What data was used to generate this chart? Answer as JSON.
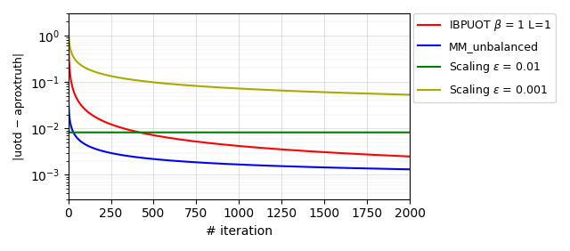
{
  "title": "",
  "xlabel": "# iteration",
  "ylabel": "|uotd − aproxtruth|",
  "xlim": [
    0,
    2000
  ],
  "legend": [
    {
      "label": "IBPUOT $\\beta$ = 1 L=1",
      "color": "red"
    },
    {
      "label": "MM_unbalanced",
      "color": "blue"
    },
    {
      "label": "Scaling $\\varepsilon$ = 0.01",
      "color": "green"
    },
    {
      "label": "Scaling $\\varepsilon$ = 0.001",
      "color": "#aaaa00"
    }
  ],
  "red_A": 1.0,
  "red_k": 0.8,
  "red_floor": 0.0002,
  "blue_A": 0.05,
  "blue_k": 0.55,
  "blue_floor": 0.00055,
  "green_A": 1.0,
  "green_k": 4.0,
  "green_plateau": 0.0082,
  "green_plateau_iter": 130,
  "yellow_A": 1.6,
  "yellow_k": 0.45,
  "yellow_floor": 0.00065,
  "n_iter": 2000,
  "ylim_low": 0.0003,
  "ylim_high": 3.0
}
